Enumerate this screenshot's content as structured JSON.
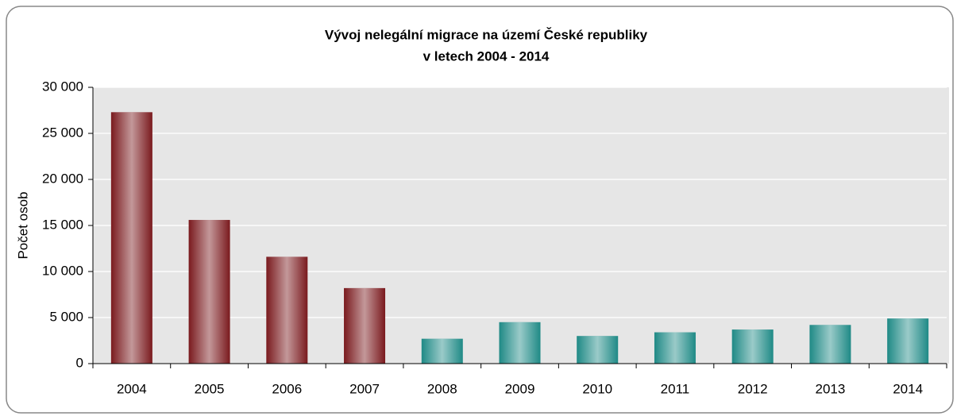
{
  "chart_data": {
    "type": "bar",
    "title": "Vývoj nelegální migrace na území České republiky",
    "subtitle": "v letech 2004 - 2014",
    "y_label": "Počet osob",
    "categories": [
      "2004",
      "2005",
      "2006",
      "2007",
      "2008",
      "2009",
      "2010",
      "2011",
      "2012",
      "2013",
      "2014"
    ],
    "values": [
      27300,
      15600,
      11600,
      8200,
      2700,
      4500,
      3000,
      3400,
      3700,
      4200,
      4900
    ],
    "colors": [
      "#7a1a1e",
      "#7a1a1e",
      "#7a1a1e",
      "#7a1a1e",
      "#1f8a86",
      "#1f8a86",
      "#1f8a86",
      "#1f8a86",
      "#1f8a86",
      "#1f8a86",
      "#1f8a86"
    ],
    "ylim": [
      0,
      30000
    ],
    "yticks": [
      0,
      {
        "value": 5000,
        "label": "5 000"
      },
      {
        "value": 10000,
        "label": "10 000"
      },
      {
        "value": 15000,
        "label": "15 000"
      },
      {
        "value": 20000,
        "label": "20 000"
      },
      {
        "value": 25000,
        "label": "25 000"
      },
      {
        "value": 30000,
        "label": "30 000"
      }
    ],
    "grid": true
  }
}
